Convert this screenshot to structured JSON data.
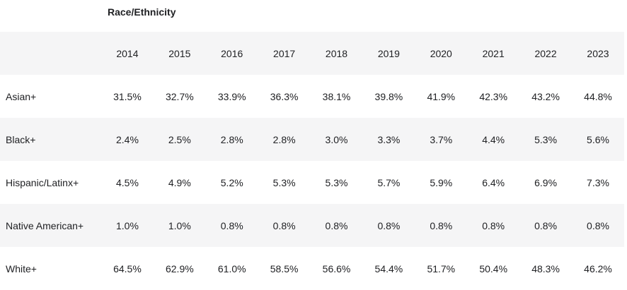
{
  "chart_data": {
    "type": "table",
    "title": "Race/Ethnicity",
    "columns": [
      "2014",
      "2015",
      "2016",
      "2017",
      "2018",
      "2019",
      "2020",
      "2021",
      "2022",
      "2023"
    ],
    "rows": [
      {
        "label": "Asian+",
        "values": [
          "31.5%",
          "32.7%",
          "33.9%",
          "36.3%",
          "38.1%",
          "39.8%",
          "41.9%",
          "42.3%",
          "43.2%",
          "44.8%"
        ]
      },
      {
        "label": "Black+",
        "values": [
          "2.4%",
          "2.5%",
          "2.8%",
          "2.8%",
          "3.0%",
          "3.3%",
          "3.7%",
          "4.4%",
          "5.3%",
          "5.6%"
        ]
      },
      {
        "label": "Hispanic/Latinx+",
        "values": [
          "4.5%",
          "4.9%",
          "5.2%",
          "5.3%",
          "5.3%",
          "5.7%",
          "5.9%",
          "6.4%",
          "6.9%",
          "7.3%"
        ]
      },
      {
        "label": "Native American+",
        "values": [
          "1.0%",
          "1.0%",
          "0.8%",
          "0.8%",
          "0.8%",
          "0.8%",
          "0.8%",
          "0.8%",
          "0.8%",
          "0.8%"
        ]
      },
      {
        "label": "White+",
        "values": [
          "64.5%",
          "62.9%",
          "61.0%",
          "58.5%",
          "56.6%",
          "54.4%",
          "51.7%",
          "50.4%",
          "48.3%",
          "46.2%"
        ]
      }
    ],
    "colors": {
      "shaded_row": "#f5f5f6",
      "text": "#202124"
    }
  }
}
